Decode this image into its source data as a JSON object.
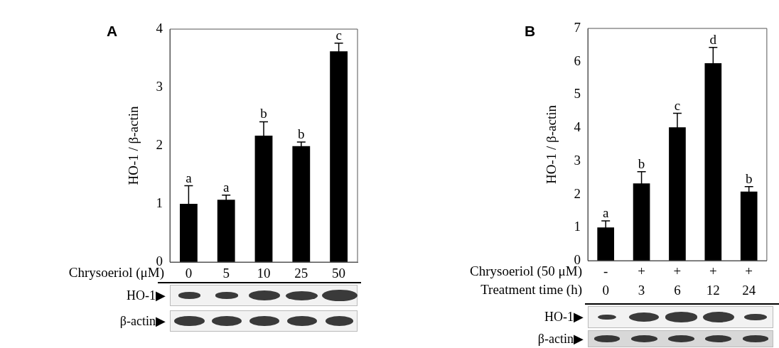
{
  "chart_data": [
    {
      "type": "bar",
      "title": "A",
      "ylabel": "HO-1 / β-actin",
      "xlabel": "Chrysoeriol (μM)",
      "categories": [
        "0",
        "5",
        "10",
        "25",
        "50"
      ],
      "values": [
        1.0,
        1.07,
        2.17,
        1.99,
        3.62
      ],
      "errors": [
        0.31,
        0.08,
        0.24,
        0.07,
        0.14
      ],
      "color": "#000000",
      "ylim": [
        0,
        4
      ],
      "yticks": [
        0,
        1,
        2,
        3,
        4
      ],
      "grid": false,
      "legend": false,
      "annotations": [
        {
          "text": "a",
          "x": "0",
          "y": 1.31
        },
        {
          "text": "a",
          "x": "5",
          "y": 1.15
        },
        {
          "text": "b",
          "x": "10",
          "y": 2.41
        },
        {
          "text": "b",
          "x": "25",
          "y": 2.06
        },
        {
          "text": "c",
          "x": "50",
          "y": 3.76
        },
        "HO-1▶",
        "β-actin▶"
      ]
    },
    {
      "type": "bar",
      "title": "B",
      "ylabel": "HO-1 / β-actin",
      "xlabel": "Treatment time (h)",
      "categories": [
        "0",
        "3",
        "6",
        "12",
        "24"
      ],
      "values": [
        1.0,
        2.33,
        4.02,
        5.95,
        2.08
      ],
      "errors": [
        0.2,
        0.35,
        0.42,
        0.48,
        0.15
      ],
      "color": "#000000",
      "ylim": [
        0,
        7
      ],
      "yticks": [
        0,
        1,
        2,
        3,
        4,
        5,
        6,
        7
      ],
      "grid": false,
      "legend": false,
      "annotations": [
        {
          "text": "a",
          "x": "0",
          "y": 1.2
        },
        {
          "text": "b",
          "x": "3",
          "y": 2.68
        },
        {
          "text": "c",
          "x": "6",
          "y": 4.44
        },
        {
          "text": "d",
          "x": "12",
          "y": 6.43
        },
        {
          "text": "b",
          "x": "24",
          "y": 2.23
        },
        "Chrysoeriol (50 μM)",
        "-",
        "+",
        "+",
        "+",
        "+",
        "HO-1▶",
        "β-actin▶"
      ]
    }
  ]
}
